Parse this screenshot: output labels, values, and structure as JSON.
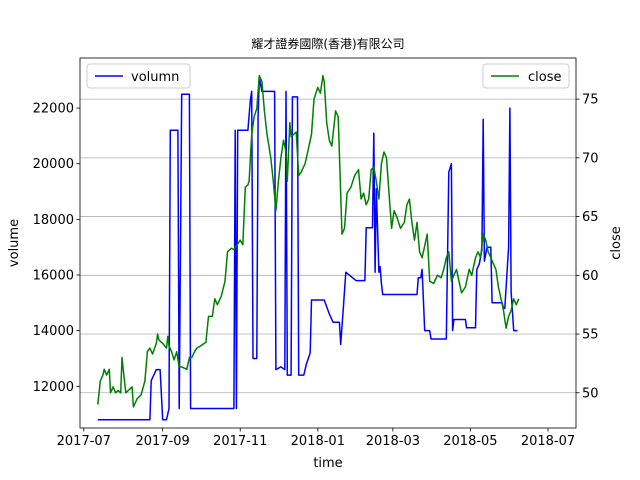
{
  "chart_data": {
    "type": "line",
    "title": "耀才證券國際(香港)有限公司",
    "xlabel": "time",
    "ylabel_left": "volume",
    "ylabel_right": "close",
    "x_tick_labels": [
      "2017-07",
      "2017-09",
      "2017-11",
      "2018-01",
      "2018-03",
      "2018-05",
      "2018-07"
    ],
    "x_tick_dates": [
      "2017-07-01",
      "2017-09-01",
      "2017-11-01",
      "2018-01-01",
      "2018-03-01",
      "2018-05-01",
      "2018-07-01"
    ],
    "xlim": [
      "2017-06-28",
      "2018-07-23"
    ],
    "y_left": {
      "lim": [
        10500,
        23800
      ],
      "ticks": [
        12000,
        14000,
        16000,
        18000,
        20000,
        22000
      ],
      "tick_labels": [
        "12000",
        "14000",
        "16000",
        "18000",
        "20000",
        "22000"
      ]
    },
    "y_right": {
      "lim": [
        47,
        78.5
      ],
      "ticks": [
        50,
        55,
        60,
        65,
        70,
        75
      ],
      "tick_labels": [
        "50",
        "55",
        "60",
        "65",
        "70",
        "75"
      ]
    },
    "grid": "horizontal lines at right-axis ticks",
    "legend_left": {
      "label": "volumn",
      "position": "upper left"
    },
    "legend_right": {
      "label": "close",
      "position": "upper right"
    },
    "series": [
      {
        "name": "volumn",
        "axis": "left",
        "color": "#0000ff",
        "points": [
          [
            "2017-07-12",
            10800
          ],
          [
            "2017-08-22",
            10800
          ],
          [
            "2017-08-23",
            12200
          ],
          [
            "2017-08-27",
            12600
          ],
          [
            "2017-08-30",
            12600
          ],
          [
            "2017-09-01",
            10800
          ],
          [
            "2017-09-04",
            10800
          ],
          [
            "2017-09-06",
            11200
          ],
          [
            "2017-09-07",
            21200
          ],
          [
            "2017-09-13",
            21200
          ],
          [
            "2017-09-14",
            11200
          ],
          [
            "2017-09-16",
            22500
          ],
          [
            "2017-09-22",
            22500
          ],
          [
            "2017-09-23",
            11200
          ],
          [
            "2017-10-27",
            11200
          ],
          [
            "2017-10-28",
            21200
          ],
          [
            "2017-10-29",
            11200
          ],
          [
            "2017-10-30",
            21200
          ],
          [
            "2017-11-07",
            21200
          ],
          [
            "2017-11-09",
            22300
          ],
          [
            "2017-11-10",
            22600
          ],
          [
            "2017-11-11",
            13000
          ],
          [
            "2017-11-14",
            13000
          ],
          [
            "2017-11-15",
            21700
          ],
          [
            "2017-11-16",
            23100
          ],
          [
            "2017-11-18",
            22600
          ],
          [
            "2017-11-28",
            22600
          ],
          [
            "2017-11-29",
            12600
          ],
          [
            "2017-12-03",
            12700
          ],
          [
            "2017-12-06",
            12600
          ],
          [
            "2017-12-07",
            22600
          ],
          [
            "2017-12-08",
            12400
          ],
          [
            "2017-12-11",
            12400
          ],
          [
            "2017-12-12",
            22400
          ],
          [
            "2017-12-16",
            22400
          ],
          [
            "2017-12-17",
            12400
          ],
          [
            "2017-12-21",
            12400
          ],
          [
            "2017-12-23",
            12800
          ],
          [
            "2017-12-26",
            13200
          ],
          [
            "2017-12-27",
            15100
          ],
          [
            "2018-01-06",
            15100
          ],
          [
            "2018-01-10",
            14600
          ],
          [
            "2018-01-13",
            14300
          ],
          [
            "2018-01-18",
            14300
          ],
          [
            "2018-01-19",
            13500
          ],
          [
            "2018-01-21",
            14800
          ],
          [
            "2018-01-23",
            16100
          ],
          [
            "2018-01-31",
            15800
          ],
          [
            "2018-02-07",
            15800
          ],
          [
            "2018-02-08",
            17700
          ],
          [
            "2018-02-13",
            17700
          ],
          [
            "2018-02-14",
            21100
          ],
          [
            "2018-02-15",
            16100
          ],
          [
            "2018-02-16",
            19100
          ],
          [
            "2018-02-18",
            16100
          ],
          [
            "2018-02-19",
            16300
          ],
          [
            "2018-02-20",
            15700
          ],
          [
            "2018-02-21",
            15300
          ],
          [
            "2018-03-20",
            15300
          ],
          [
            "2018-03-21",
            15900
          ],
          [
            "2018-03-23",
            15900
          ],
          [
            "2018-03-24",
            16200
          ],
          [
            "2018-03-26",
            14000
          ],
          [
            "2018-03-30",
            14000
          ],
          [
            "2018-03-31",
            13700
          ],
          [
            "2018-04-12",
            13700
          ],
          [
            "2018-04-14",
            19700
          ],
          [
            "2018-04-16",
            20000
          ],
          [
            "2018-04-17",
            14000
          ],
          [
            "2018-04-18",
            14400
          ],
          [
            "2018-04-27",
            14400
          ],
          [
            "2018-04-28",
            14100
          ],
          [
            "2018-05-05",
            14100
          ],
          [
            "2018-05-06",
            16200
          ],
          [
            "2018-05-08",
            16400
          ],
          [
            "2018-05-10",
            16900
          ],
          [
            "2018-05-11",
            21600
          ],
          [
            "2018-05-12",
            16500
          ],
          [
            "2018-05-14",
            17000
          ],
          [
            "2018-05-17",
            17000
          ],
          [
            "2018-05-18",
            15000
          ],
          [
            "2018-05-26",
            15000
          ],
          [
            "2018-05-27",
            14800
          ],
          [
            "2018-05-28",
            14800
          ],
          [
            "2018-05-31",
            17000
          ],
          [
            "2018-06-01",
            22000
          ],
          [
            "2018-06-02",
            15400
          ],
          [
            "2018-06-04",
            14000
          ],
          [
            "2018-06-07",
            14000
          ]
        ]
      },
      {
        "name": "close",
        "axis": "right",
        "color": "#008000",
        "points": [
          [
            "2017-07-12",
            49.0
          ],
          [
            "2017-07-14",
            51.0
          ],
          [
            "2017-07-16",
            51.5
          ],
          [
            "2017-07-17",
            52.0
          ],
          [
            "2017-07-19",
            51.5
          ],
          [
            "2017-07-21",
            52.0
          ],
          [
            "2017-07-22",
            50.0
          ],
          [
            "2017-07-24",
            50.5
          ],
          [
            "2017-07-26",
            50.0
          ],
          [
            "2017-07-28",
            50.2
          ],
          [
            "2017-07-30",
            50.0
          ],
          [
            "2017-07-31",
            53.0
          ],
          [
            "2017-08-01",
            52.0
          ],
          [
            "2017-08-03",
            50.0
          ],
          [
            "2017-08-05",
            50.2
          ],
          [
            "2017-08-08",
            50.5
          ],
          [
            "2017-08-09",
            48.8
          ],
          [
            "2017-08-12",
            49.5
          ],
          [
            "2017-08-15",
            49.8
          ],
          [
            "2017-08-18",
            51.0
          ],
          [
            "2017-08-20",
            53.5
          ],
          [
            "2017-08-22",
            53.8
          ],
          [
            "2017-08-24",
            53.3
          ],
          [
            "2017-08-27",
            54.2
          ],
          [
            "2017-08-28",
            55.0
          ],
          [
            "2017-08-29",
            54.5
          ],
          [
            "2017-09-01",
            54.2
          ],
          [
            "2017-09-04",
            53.8
          ],
          [
            "2017-09-05",
            54.8
          ],
          [
            "2017-09-06",
            54.0
          ],
          [
            "2017-09-08",
            53.5
          ],
          [
            "2017-09-10",
            52.8
          ],
          [
            "2017-09-12",
            53.5
          ],
          [
            "2017-09-14",
            52.2
          ],
          [
            "2017-09-16",
            52.2
          ],
          [
            "2017-09-20",
            52.0
          ],
          [
            "2017-09-22",
            53.0
          ],
          [
            "2017-09-24",
            53.0
          ],
          [
            "2017-09-26",
            53.5
          ],
          [
            "2017-09-28",
            53.8
          ],
          [
            "2017-10-01",
            54.0
          ],
          [
            "2017-10-05",
            54.3
          ],
          [
            "2017-10-07",
            56.5
          ],
          [
            "2017-10-10",
            56.5
          ],
          [
            "2017-10-12",
            58.0
          ],
          [
            "2017-10-14",
            57.5
          ],
          [
            "2017-10-17",
            58.2
          ],
          [
            "2017-10-20",
            59.5
          ],
          [
            "2017-10-22",
            62.0
          ],
          [
            "2017-10-25",
            62.3
          ],
          [
            "2017-10-27",
            62.2
          ],
          [
            "2017-10-29",
            62.5
          ],
          [
            "2017-11-01",
            63.0
          ],
          [
            "2017-11-03",
            62.6
          ],
          [
            "2017-11-05",
            67.5
          ],
          [
            "2017-11-07",
            67.7
          ],
          [
            "2017-11-08",
            68.0
          ],
          [
            "2017-11-10",
            72.0
          ],
          [
            "2017-11-12",
            73.5
          ],
          [
            "2017-11-14",
            74.2
          ],
          [
            "2017-11-16",
            77.0
          ],
          [
            "2017-11-18",
            76.5
          ],
          [
            "2017-11-20",
            74.0
          ],
          [
            "2017-11-22",
            72.0
          ],
          [
            "2017-11-25",
            70.0
          ],
          [
            "2017-11-27",
            68.0
          ],
          [
            "2017-11-29",
            65.5
          ],
          [
            "2017-12-01",
            68.0
          ],
          [
            "2017-12-03",
            70.0
          ],
          [
            "2017-12-05",
            71.5
          ],
          [
            "2017-12-07",
            70.5
          ],
          [
            "2017-12-08",
            68.0
          ],
          [
            "2017-12-10",
            73.0
          ],
          [
            "2017-12-11",
            71.8
          ],
          [
            "2017-12-13",
            72.0
          ],
          [
            "2017-12-15",
            72.2
          ],
          [
            "2017-12-17",
            68.5
          ],
          [
            "2017-12-19",
            68.8
          ],
          [
            "2017-12-22",
            69.5
          ],
          [
            "2017-12-24",
            70.5
          ],
          [
            "2017-12-27",
            72.0
          ],
          [
            "2017-12-29",
            75.0
          ],
          [
            "2018-01-01",
            76.0
          ],
          [
            "2018-01-03",
            75.5
          ],
          [
            "2018-01-05",
            77.0
          ],
          [
            "2018-01-06",
            76.5
          ],
          [
            "2018-01-08",
            73.0
          ],
          [
            "2018-01-10",
            71.5
          ],
          [
            "2018-01-12",
            71.0
          ],
          [
            "2018-01-15",
            74.0
          ],
          [
            "2018-01-17",
            73.5
          ],
          [
            "2018-01-20",
            63.5
          ],
          [
            "2018-01-22",
            64.0
          ],
          [
            "2018-01-24",
            67.0
          ],
          [
            "2018-01-27",
            67.5
          ],
          [
            "2018-01-30",
            68.5
          ],
          [
            "2018-02-02",
            69.0
          ],
          [
            "2018-02-04",
            66.5
          ],
          [
            "2018-02-06",
            67.0
          ],
          [
            "2018-02-08",
            66.0
          ],
          [
            "2018-02-10",
            66.5
          ],
          [
            "2018-02-12",
            69.0
          ],
          [
            "2018-02-14",
            69.2
          ],
          [
            "2018-02-16",
            68.0
          ],
          [
            "2018-02-18",
            66.5
          ],
          [
            "2018-02-20",
            69.5
          ],
          [
            "2018-02-22",
            70.5
          ],
          [
            "2018-02-24",
            70.0
          ],
          [
            "2018-02-26",
            67.0
          ],
          [
            "2018-02-28",
            64.0
          ],
          [
            "2018-03-02",
            65.5
          ],
          [
            "2018-03-04",
            65.0
          ],
          [
            "2018-03-07",
            64.0
          ],
          [
            "2018-03-10",
            64.5
          ],
          [
            "2018-03-12",
            66.0
          ],
          [
            "2018-03-14",
            66.5
          ],
          [
            "2018-03-16",
            64.5
          ],
          [
            "2018-03-18",
            63.0
          ],
          [
            "2018-03-20",
            64.5
          ],
          [
            "2018-03-22",
            62.0
          ],
          [
            "2018-03-24",
            61.5
          ],
          [
            "2018-03-26",
            62.5
          ],
          [
            "2018-03-28",
            63.5
          ],
          [
            "2018-03-30",
            59.5
          ],
          [
            "2018-04-02",
            59.3
          ],
          [
            "2018-04-05",
            60.0
          ],
          [
            "2018-04-08",
            59.8
          ],
          [
            "2018-04-10",
            60.5
          ],
          [
            "2018-04-12",
            61.5
          ],
          [
            "2018-04-14",
            62.0
          ],
          [
            "2018-04-16",
            59.5
          ],
          [
            "2018-04-18",
            60.0
          ],
          [
            "2018-04-20",
            60.5
          ],
          [
            "2018-04-22",
            59.5
          ],
          [
            "2018-04-24",
            58.5
          ],
          [
            "2018-04-27",
            59.0
          ],
          [
            "2018-04-30",
            60.5
          ],
          [
            "2018-05-02",
            60.0
          ],
          [
            "2018-05-05",
            61.5
          ],
          [
            "2018-05-07",
            62.0
          ],
          [
            "2018-05-09",
            61.5
          ],
          [
            "2018-05-11",
            63.5
          ],
          [
            "2018-05-13",
            63.0
          ],
          [
            "2018-05-15",
            62.0
          ],
          [
            "2018-05-17",
            61.5
          ],
          [
            "2018-05-19",
            61.0
          ],
          [
            "2018-05-21",
            60.5
          ],
          [
            "2018-05-23",
            59.0
          ],
          [
            "2018-05-25",
            58.0
          ],
          [
            "2018-05-27",
            57.0
          ],
          [
            "2018-05-29",
            55.5
          ],
          [
            "2018-05-31",
            56.5
          ],
          [
            "2018-06-02",
            57.0
          ],
          [
            "2018-06-04",
            58.0
          ],
          [
            "2018-06-06",
            57.5
          ],
          [
            "2018-06-08",
            58.0
          ]
        ]
      }
    ]
  }
}
